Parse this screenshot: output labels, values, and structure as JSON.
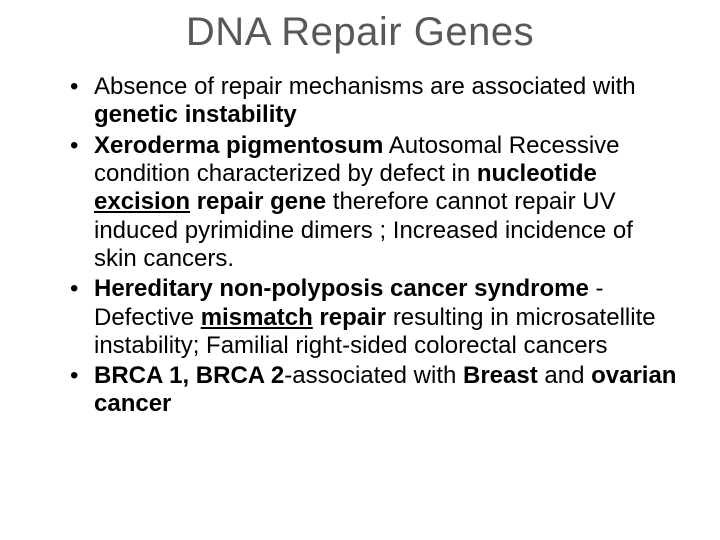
{
  "title": "DNA Repair Genes",
  "bullets": [
    {
      "runs": [
        {
          "t": "Absence of repair mechanisms are associated with "
        },
        {
          "t": "genetic instability",
          "b": true
        }
      ]
    },
    {
      "runs": [
        {
          "t": "Xeroderma pigmentosum",
          "b": true
        },
        {
          "t": "  Autosomal Recessive condition characterized by defect in "
        },
        {
          "t": "nucleotide ",
          "b": true
        },
        {
          "t": "excision",
          "b": true,
          "u": true
        },
        {
          "t": " repair gene ",
          "b": true
        },
        {
          "t": "therefore cannot repair UV induced pyrimidine dimers ; Increased incidence of skin cancers."
        }
      ]
    },
    {
      "runs": [
        {
          "t": "Hereditary non-polyposis cancer syndrome",
          "b": true
        },
        {
          "t": " - Defective "
        },
        {
          "t": "mismatch",
          "b": true,
          "u": true
        },
        {
          "t": " repair ",
          "b": true
        },
        {
          "t": "resulting in microsatellite instability; Familial right-sided colorectal cancers"
        }
      ]
    },
    {
      "runs": [
        {
          "t": "BRCA 1, BRCA 2",
          "b": true
        },
        {
          "t": "-associated with "
        },
        {
          "t": "Breast ",
          "b": true
        },
        {
          "t": "and "
        },
        {
          "t": "ovarian cancer",
          "b": true
        }
      ]
    }
  ],
  "colors": {
    "background": "#ffffff",
    "title": "#595757",
    "body": "#000000"
  },
  "typography": {
    "title_fontsize": 40,
    "body_fontsize": 24,
    "font_family": "Arial"
  }
}
